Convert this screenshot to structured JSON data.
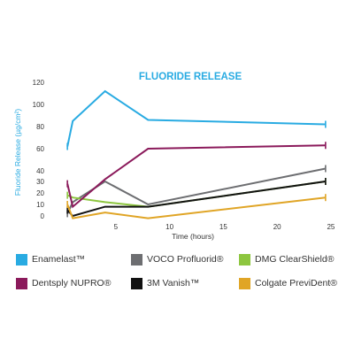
{
  "chart_data": {
    "type": "line",
    "title": "FLUORIDE RELEASE",
    "xlabel": "Time (hours)",
    "ylabel": "Fluoride Release (µg/cm²)",
    "xlim": [
      -0.5,
      25.5
    ],
    "ylim": [
      -4,
      122
    ],
    "x_ticks": [
      "5",
      "10",
      "15",
      "20",
      "25"
    ],
    "y_ticks": [
      "0",
      "10",
      "20",
      "30",
      "40",
      "60",
      "80",
      "100",
      "120"
    ],
    "grid": false,
    "legend_position": "bottom",
    "series": [
      {
        "name": "Enamelast™",
        "color": "#29abe2",
        "points": [
          [
            0.5,
            62
          ],
          [
            1,
            85
          ],
          [
            4,
            112
          ],
          [
            8,
            86
          ],
          [
            24.5,
            82
          ]
        ]
      },
      {
        "name": "VOCO Profluorid®",
        "color": "#6d6e71",
        "points": [
          [
            0.5,
            2
          ],
          [
            1,
            12
          ],
          [
            4,
            30
          ],
          [
            8,
            10
          ],
          [
            24.5,
            42
          ]
        ]
      },
      {
        "name": "DMG ClearShield®",
        "color": "#8dc63f",
        "points": [
          [
            0.5,
            18
          ],
          [
            1,
            16
          ],
          [
            4,
            12
          ],
          [
            8,
            8
          ],
          [
            24.5,
            30
          ]
        ]
      },
      {
        "name": "Dentsply NUPRO®",
        "color": "#8b1a5b",
        "points": [
          [
            0.5,
            28
          ],
          [
            1,
            8
          ],
          [
            4,
            32
          ],
          [
            8,
            60
          ],
          [
            24.5,
            63
          ]
        ]
      },
      {
        "name": "3M Vanish™",
        "color": "#111111",
        "points": [
          [
            0.5,
            5
          ],
          [
            1,
            0
          ],
          [
            4,
            8
          ],
          [
            8,
            8
          ],
          [
            24.5,
            30
          ]
        ]
      },
      {
        "name": "Colgate PreviDent®",
        "color": "#e0a526",
        "points": [
          [
            0.5,
            10
          ],
          [
            1,
            -2
          ],
          [
            4,
            3
          ],
          [
            8,
            -2
          ],
          [
            24.5,
            16
          ]
        ]
      }
    ]
  }
}
